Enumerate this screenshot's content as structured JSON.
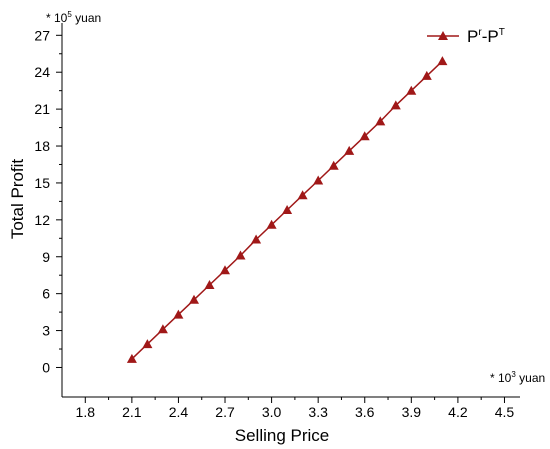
{
  "chart_data": {
    "type": "line",
    "xlabel": "Selling Price",
    "ylabel": "Total Profit",
    "x_unit": {
      "prefix": "* 10",
      "exp": "3",
      "suffix": " yuan"
    },
    "y_unit": {
      "prefix": "* 10",
      "exp": "5",
      "suffix": " yuan"
    },
    "xlim": [
      1.65,
      4.6
    ],
    "ylim": [
      -2.4,
      28
    ],
    "x_ticks": [
      "1.8",
      "2.1",
      "2.4",
      "2.7",
      "3.0",
      "3.3",
      "3.6",
      "3.9",
      "4.2",
      "4.5"
    ],
    "y_ticks": [
      "0",
      "3",
      "6",
      "9",
      "12",
      "15",
      "18",
      "21",
      "24",
      "27"
    ],
    "legend_position": "top-right",
    "grid": false,
    "series": [
      {
        "name": {
          "base1": "P",
          "sup1": "r",
          "mid": "-P",
          "sup2": "T"
        },
        "color": "#a01818",
        "marker": "triangle",
        "x": [
          2.1,
          2.2,
          2.3,
          2.4,
          2.5,
          2.6,
          2.7,
          2.8,
          2.9,
          3.0,
          3.1,
          3.2,
          3.3,
          3.4,
          3.5,
          3.6,
          3.7,
          3.8,
          3.9,
          4.0,
          4.1
        ],
        "y": [
          0.7,
          1.9,
          3.1,
          4.3,
          5.5,
          6.7,
          7.9,
          9.1,
          10.4,
          11.6,
          12.8,
          14.0,
          15.2,
          16.4,
          17.6,
          18.8,
          20.0,
          21.3,
          22.5,
          23.7,
          24.9
        ]
      }
    ]
  }
}
